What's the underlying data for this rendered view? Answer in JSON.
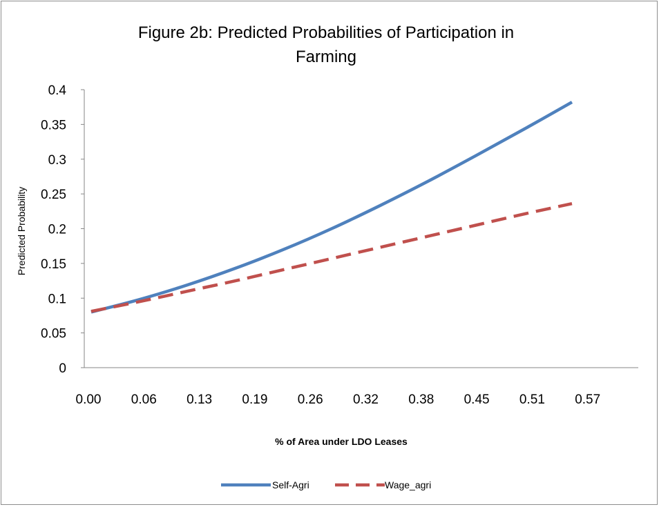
{
  "chart_data": {
    "type": "line",
    "title_line1": "Figure 2b: Predicted Probabilities of Participation in",
    "title_line2": "Farming",
    "xlabel": "% of Area under LDO Leases",
    "ylabel": "Predicted Probability",
    "ylim": [
      0,
      0.4
    ],
    "yticks": [
      "0",
      "0.05",
      "0.1",
      "0.15",
      "0.2",
      "0.25",
      "0.3",
      "0.35",
      "0.4"
    ],
    "categories": [
      "0.00",
      "0.06",
      "0.13",
      "0.19",
      "0.26",
      "0.32",
      "0.38",
      "0.45",
      "0.51",
      "0.57"
    ],
    "x": [
      0.0,
      0.0625,
      0.125,
      0.1875,
      0.25,
      0.3125,
      0.375,
      0.4375,
      0.5,
      0.5625,
      0.625
    ],
    "grid": false,
    "legend_position": "bottom",
    "series": [
      {
        "name": "Self-Agri",
        "color": "#4F81BD",
        "style": "solid",
        "values": [
          0.08,
          0.098,
          0.119,
          0.143,
          0.17,
          0.2,
          0.233,
          0.268,
          0.305,
          0.343,
          0.382
        ]
      },
      {
        "name": "Wage_agri",
        "color": "#C0504D",
        "style": "dashed",
        "values": [
          0.081,
          0.095,
          0.11,
          0.125,
          0.141,
          0.157,
          0.173,
          0.189,
          0.205,
          0.221,
          0.236
        ]
      }
    ]
  }
}
